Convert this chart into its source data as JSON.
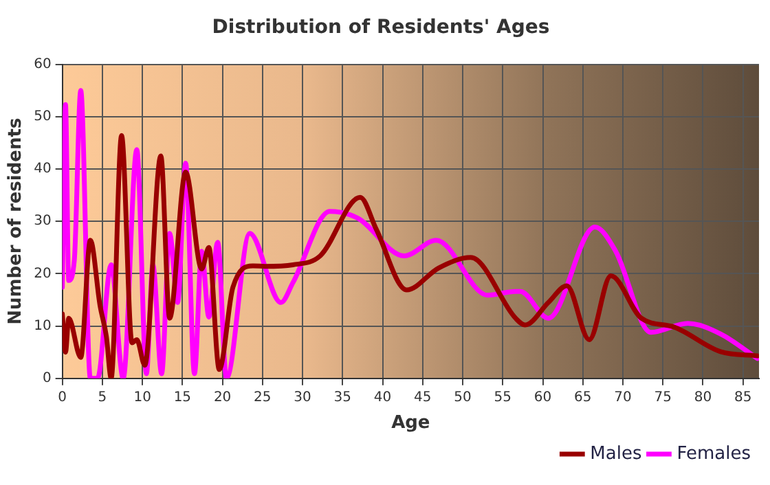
{
  "chart_data": {
    "type": "line",
    "title": "Distribution of Residents' Ages",
    "xlabel": "Age",
    "ylabel": "Number of residents",
    "xlim": [
      0,
      87
    ],
    "xticks": [
      0,
      5,
      10,
      15,
      20,
      25,
      30,
      35,
      40,
      45,
      50,
      55,
      60,
      65,
      70,
      75,
      80,
      85
    ],
    "ylim": [
      0,
      60
    ],
    "yticks": [
      0,
      10,
      20,
      30,
      40,
      50,
      60
    ],
    "grid": true,
    "legend": "bottom right",
    "marker": "none",
    "line_style": "solid",
    "series": [
      {
        "name": "Males",
        "color": "#990000",
        "x": [
          0,
          0.4,
          0.8,
          2.3,
          3.5,
          4.7,
          5.5,
          6.1,
          7.4,
          8.7,
          9.3,
          10.3,
          12.3,
          13.4,
          15.4,
          17.4,
          18.3,
          19.6,
          21.3,
          23.8,
          25.3,
          28.8,
          32.2,
          37.2,
          39.2,
          43,
          47,
          51,
          56.6,
          57.8,
          60.7,
          63,
          65.8,
          68.5,
          72.3,
          76.4,
          82.2,
          86.8
        ],
        "values": [
          12.3,
          5,
          11.5,
          4,
          26.4,
          14,
          8,
          0,
          46.4,
          6.8,
          7.4,
          2.5,
          42.5,
          11.5,
          39.4,
          20.9,
          25,
          1.7,
          17.4,
          21.5,
          21.4,
          21.7,
          23.4,
          34.6,
          28.5,
          16.9,
          21.1,
          23.1,
          11.5,
          10.2,
          14.5,
          17.7,
          7.4,
          19.6,
          11.5,
          9.8,
          5.1,
          4.3
        ]
      },
      {
        "name": "Females",
        "color": "#ff00ff",
        "x": [
          0,
          0.4,
          0.8,
          1.5,
          2.3,
          3.5,
          4.4,
          6.1,
          7.6,
          9.3,
          10.5,
          11.3,
          12.4,
          13.4,
          14.4,
          15.4,
          16.5,
          17.4,
          18.3,
          19.4,
          20.5,
          23.4,
          27.3,
          28.8,
          33.4,
          36.9,
          42.7,
          46.7,
          53.1,
          56.6,
          57.2,
          60.7,
          66.5,
          69.1,
          73.5,
          78.1,
          82.2,
          86.8
        ],
        "values": [
          17.4,
          52.3,
          18.7,
          22.6,
          55,
          0,
          0,
          21.7,
          0,
          43.7,
          0.9,
          21.7,
          0.9,
          27.7,
          14.5,
          41.1,
          0.9,
          24.3,
          11.7,
          26,
          0,
          27.7,
          14.5,
          18.3,
          31.9,
          30.6,
          23.4,
          26.4,
          15.9,
          16.6,
          16.6,
          11.5,
          28.9,
          24.3,
          8.8,
          10.5,
          8.5,
          3.8
        ]
      }
    ]
  }
}
